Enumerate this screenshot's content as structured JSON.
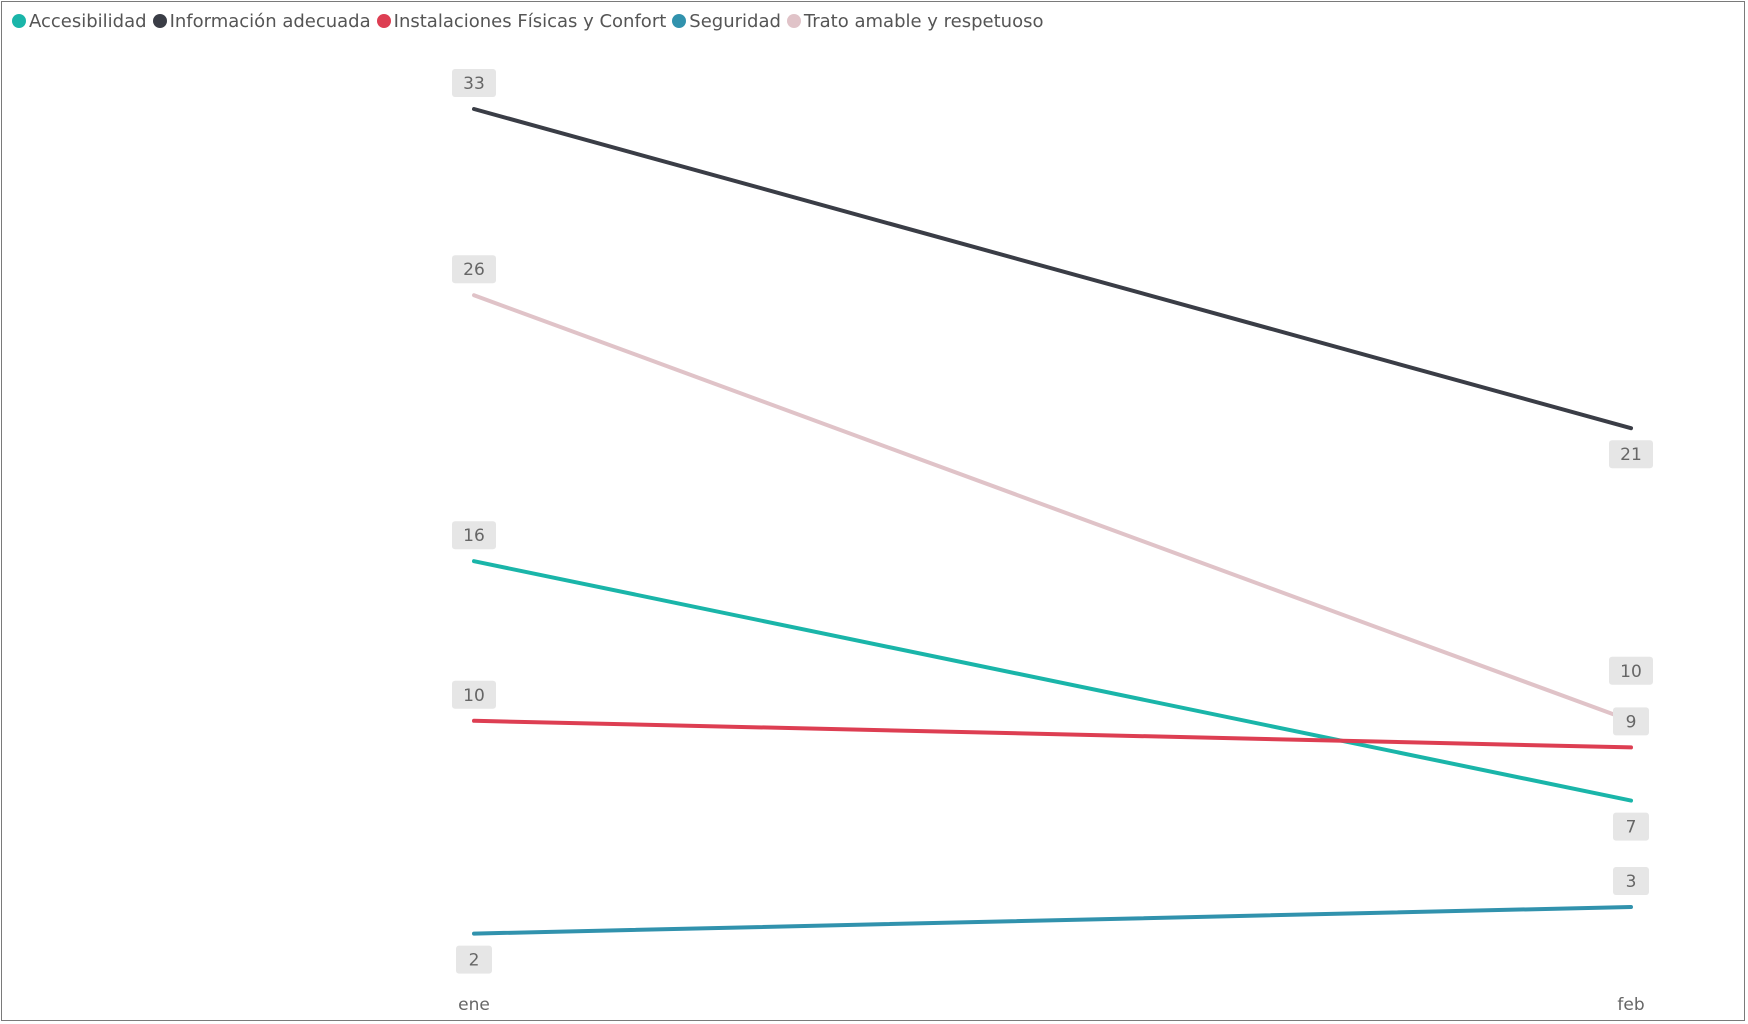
{
  "chart_data": {
    "type": "line",
    "x": [
      "ene",
      "feb"
    ],
    "legend_position": "top-left",
    "grid": false,
    "series": [
      {
        "name": "Accesibilidad",
        "color": "#1ab5a9",
        "values": [
          16,
          7
        ]
      },
      {
        "name": "Información adecuada",
        "color": "#3a3d46",
        "values": [
          33,
          21
        ]
      },
      {
        "name": "Instalaciones Físicas y Confort",
        "color": "#dd3e52",
        "values": [
          10,
          9
        ]
      },
      {
        "name": "Seguridad",
        "color": "#3192ad",
        "values": [
          2,
          3
        ]
      },
      {
        "name": "Trato amable y respetuoso",
        "color": "#e0c3c8",
        "values": [
          26,
          10
        ]
      }
    ]
  }
}
